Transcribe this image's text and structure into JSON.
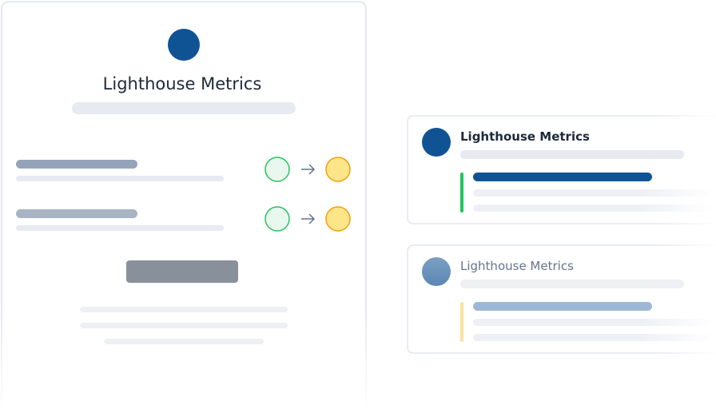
{
  "panel": {
    "title": "Lighthouse Metrics"
  },
  "cards": [
    {
      "title": "Lighthouse Metrics"
    },
    {
      "title": "Lighthouse Metrics"
    }
  ]
}
